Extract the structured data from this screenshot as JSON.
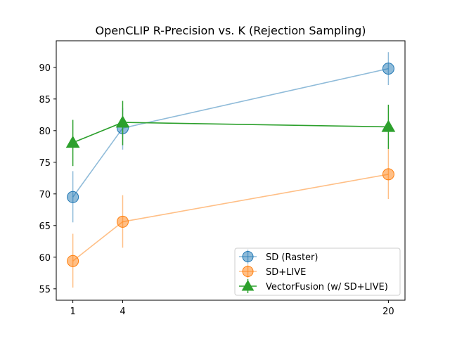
{
  "chart_data": {
    "type": "line",
    "title": "OpenCLIP R-Precision vs. K (Rejection Sampling)",
    "xlabel": "",
    "ylabel": "",
    "x": [
      1,
      4,
      20
    ],
    "xticks": [
      "1",
      "4",
      "20"
    ],
    "xlim": [
      0,
      21
    ],
    "ylim": [
      53.2,
      94.2
    ],
    "yticks": [
      55,
      60,
      65,
      70,
      75,
      80,
      85,
      90
    ],
    "legend_position": "lower-right",
    "series": [
      {
        "name": "SD (Raster)",
        "color": "#1f77b4",
        "marker": "circle",
        "alpha": 0.5,
        "values": [
          69.5,
          80.4,
          89.8
        ],
        "err_low": [
          65.5,
          77.0,
          87.2
        ],
        "err_high": [
          73.6,
          83.6,
          92.4
        ]
      },
      {
        "name": "SD+LIVE",
        "color": "#ff7f0e",
        "marker": "circle",
        "alpha": 0.5,
        "values": [
          59.4,
          65.6,
          73.1
        ],
        "err_low": [
          55.2,
          61.5,
          69.2
        ],
        "err_high": [
          63.7,
          69.8,
          77.1
        ]
      },
      {
        "name": "VectorFusion (w/ SD+LIVE)",
        "color": "#2ca02c",
        "marker": "triangle",
        "alpha": 1.0,
        "values": [
          78.1,
          81.3,
          80.6
        ],
        "err_low": [
          74.4,
          77.7,
          77.1
        ],
        "err_high": [
          81.7,
          84.7,
          84.1
        ]
      }
    ]
  }
}
